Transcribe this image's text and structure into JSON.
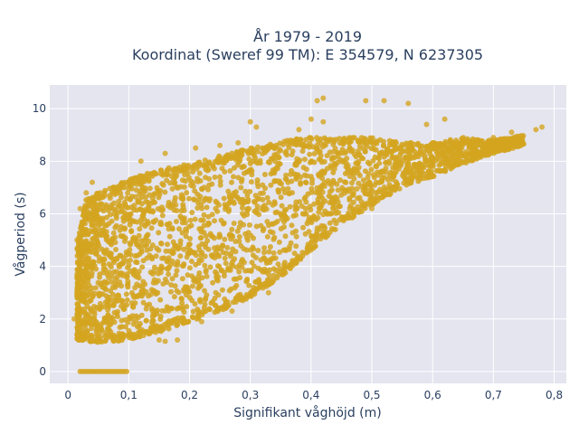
{
  "chart_data": {
    "type": "scatter",
    "title_line1": "År 1979 - 2019",
    "title_line2": "Koordinat (Sweref 99 TM): E 354579, N 6237305",
    "xlabel": "Signifikant våghöjd (m)",
    "ylabel": "Vågperiod (s)",
    "xlim": [
      -0.03,
      0.82
    ],
    "ylim": [
      -0.45,
      10.9
    ],
    "x_ticks": [
      0,
      0.1,
      0.2,
      0.3,
      0.4,
      0.5,
      0.6,
      0.7,
      0.8
    ],
    "x_tick_labels": [
      "0",
      "0,1",
      "0,2",
      "0,3",
      "0,4",
      "0,5",
      "0,6",
      "0,7",
      "0,8"
    ],
    "y_ticks": [
      0,
      2,
      4,
      6,
      8,
      10
    ],
    "y_tick_labels": [
      "0",
      "2",
      "4",
      "6",
      "8",
      "10"
    ],
    "grid": true,
    "marker_color": "#D4A520",
    "plot_bg": "#E5E5F0",
    "envelope": {
      "lower": [
        [
          0.015,
          1.2
        ],
        [
          0.05,
          1.1
        ],
        [
          0.1,
          1.2
        ],
        [
          0.15,
          1.5
        ],
        [
          0.2,
          1.9
        ],
        [
          0.25,
          2.3
        ],
        [
          0.3,
          2.8
        ],
        [
          0.35,
          3.6
        ],
        [
          0.4,
          4.6
        ],
        [
          0.45,
          5.6
        ],
        [
          0.5,
          6.3
        ],
        [
          0.55,
          7.0
        ],
        [
          0.6,
          7.4
        ],
        [
          0.65,
          7.9
        ],
        [
          0.7,
          8.3
        ],
        [
          0.75,
          8.6
        ]
      ],
      "upper": [
        [
          0.015,
          4.8
        ],
        [
          0.03,
          6.6
        ],
        [
          0.05,
          6.8
        ],
        [
          0.1,
          7.3
        ],
        [
          0.15,
          7.7
        ],
        [
          0.2,
          7.9
        ],
        [
          0.25,
          8.2
        ],
        [
          0.3,
          8.5
        ],
        [
          0.35,
          8.8
        ],
        [
          0.4,
          8.9
        ],
        [
          0.45,
          8.9
        ],
        [
          0.5,
          8.9
        ],
        [
          0.55,
          8.7
        ],
        [
          0.6,
          8.7
        ],
        [
          0.65,
          8.9
        ],
        [
          0.7,
          8.8
        ],
        [
          0.75,
          9.0
        ]
      ]
    },
    "zero_row": {
      "y": 0,
      "x_from": 0.02,
      "x_to": 0.1
    },
    "outliers": [
      {
        "x": 0.41,
        "y": 10.3
      },
      {
        "x": 0.42,
        "y": 10.4
      },
      {
        "x": 0.4,
        "y": 9.6
      },
      {
        "x": 0.38,
        "y": 9.2
      },
      {
        "x": 0.52,
        "y": 10.3
      },
      {
        "x": 0.56,
        "y": 10.2
      },
      {
        "x": 0.62,
        "y": 9.6
      },
      {
        "x": 0.59,
        "y": 9.4
      },
      {
        "x": 0.7,
        "y": 8.9
      },
      {
        "x": 0.73,
        "y": 9.1
      },
      {
        "x": 0.77,
        "y": 9.2
      },
      {
        "x": 0.78,
        "y": 9.3
      },
      {
        "x": 0.68,
        "y": 8.6
      },
      {
        "x": 0.64,
        "y": 8.1
      },
      {
        "x": 0.5,
        "y": 6.2
      },
      {
        "x": 0.44,
        "y": 5.4
      },
      {
        "x": 0.4,
        "y": 4.9
      },
      {
        "x": 0.47,
        "y": 6.8
      },
      {
        "x": 0.54,
        "y": 7.6
      },
      {
        "x": 0.42,
        "y": 9.5
      },
      {
        "x": 0.31,
        "y": 9.3
      },
      {
        "x": 0.3,
        "y": 9.5
      },
      {
        "x": 0.28,
        "y": 8.7
      },
      {
        "x": 0.25,
        "y": 8.6
      },
      {
        "x": 0.21,
        "y": 8.5
      },
      {
        "x": 0.16,
        "y": 8.3
      },
      {
        "x": 0.12,
        "y": 8.0
      },
      {
        "x": 0.04,
        "y": 7.2
      },
      {
        "x": 0.03,
        "y": 6.8
      },
      {
        "x": 0.02,
        "y": 6.2
      },
      {
        "x": 0.015,
        "y": 5.0
      },
      {
        "x": 0.015,
        "y": 3.0
      },
      {
        "x": 0.01,
        "y": 2.0
      },
      {
        "x": 0.015,
        "y": 1.4
      },
      {
        "x": 0.02,
        "y": 1.2
      },
      {
        "x": 0.15,
        "y": 1.2
      },
      {
        "x": 0.16,
        "y": 1.15
      },
      {
        "x": 0.18,
        "y": 1.2
      },
      {
        "x": 0.22,
        "y": 1.9
      },
      {
        "x": 0.27,
        "y": 2.3
      },
      {
        "x": 0.33,
        "y": 3.0
      },
      {
        "x": 0.49,
        "y": 10.3
      },
      {
        "x": 0.6,
        "y": 8.7
      },
      {
        "x": 0.66,
        "y": 8.5
      }
    ]
  }
}
